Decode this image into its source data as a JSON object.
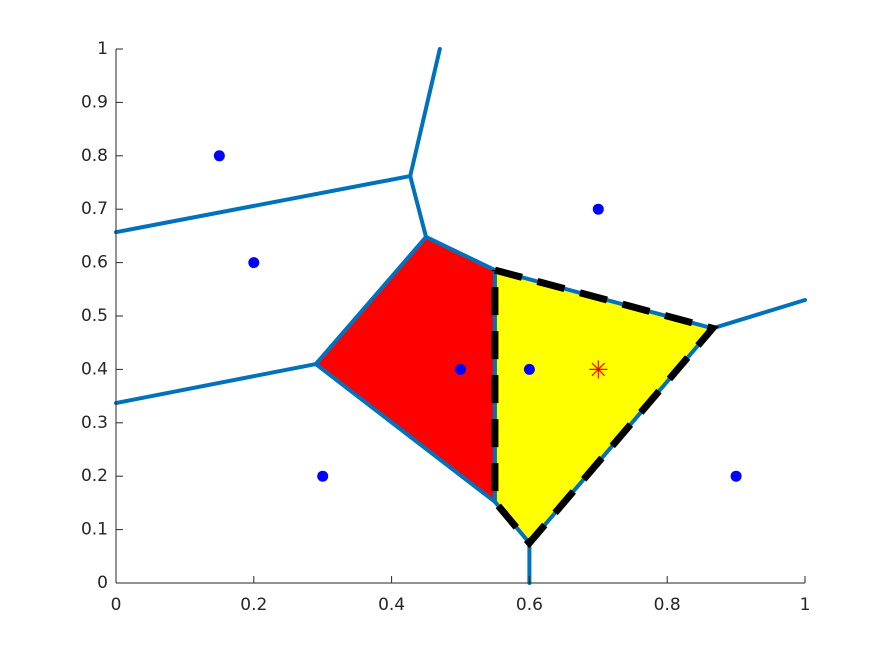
{
  "chart_data": {
    "type": "scatter",
    "xlim": [
      0,
      1
    ],
    "ylim": [
      0,
      1
    ],
    "xticks": [
      0,
      0.2,
      0.4,
      0.6,
      0.8,
      1
    ],
    "yticks": [
      0,
      0.1,
      0.2,
      0.3,
      0.4,
      0.5,
      0.6,
      0.7,
      0.8,
      0.9,
      1
    ],
    "regions": [
      {
        "color": "#ff0000",
        "x": [
          0.45,
          0.29,
          0.55,
          0.55
        ],
        "y": [
          0.648,
          0.41,
          0.152,
          0.586
        ]
      },
      {
        "color": "#ffff00",
        "x": [
          0.55,
          0.866,
          0.6,
          0.55
        ],
        "y": [
          0.586,
          0.477,
          0.075,
          0.152
        ]
      }
    ],
    "edge_color": "#0072bd",
    "edges": [
      {
        "x": [
          0.47,
          0.427
        ],
        "y": [
          1,
          0.762
        ]
      },
      {
        "x": [
          0,
          0.427
        ],
        "y": [
          0.657,
          0.762
        ]
      },
      {
        "x": [
          0.427,
          0.45
        ],
        "y": [
          0.762,
          0.648
        ]
      },
      {
        "x": [
          0.45,
          0.29
        ],
        "y": [
          0.648,
          0.41
        ]
      },
      {
        "x": [
          0,
          0.29
        ],
        "y": [
          0.337,
          0.41
        ]
      },
      {
        "x": [
          0.29,
          0.55
        ],
        "y": [
          0.41,
          0.152
        ]
      },
      {
        "x": [
          0.45,
          0.55
        ],
        "y": [
          0.648,
          0.586
        ]
      },
      {
        "x": [
          0.55,
          0.55
        ],
        "y": [
          0.586,
          0.152
        ]
      },
      {
        "x": [
          0.55,
          0.866
        ],
        "y": [
          0.586,
          0.477
        ]
      },
      {
        "x": [
          0.866,
          1
        ],
        "y": [
          0.477,
          0.53
        ]
      },
      {
        "x": [
          0.866,
          0.6
        ],
        "y": [
          0.477,
          0.075
        ]
      },
      {
        "x": [
          0.55,
          0.6
        ],
        "y": [
          0.152,
          0.075
        ]
      },
      {
        "x": [
          0.6,
          0.6
        ],
        "y": [
          0.075,
          0
        ]
      }
    ],
    "outline": {
      "color": "#000000",
      "style": "dashed",
      "x": [
        0.55,
        0.866,
        0.6,
        0.55,
        0.55
      ],
      "y": [
        0.586,
        0.477,
        0.075,
        0.152,
        0.586
      ]
    },
    "series": [
      {
        "color": "#0000ff",
        "marker": "o",
        "x": [
          0.15,
          0.2,
          0.3,
          0.5,
          0.6,
          0.7,
          0.9
        ],
        "values": [
          0.8,
          0.6,
          0.2,
          0.4,
          0.4,
          0.7,
          0.2
        ]
      },
      {
        "color": "#ff0000",
        "marker": "*",
        "x": [
          0.7
        ],
        "values": [
          0.4
        ]
      }
    ]
  }
}
